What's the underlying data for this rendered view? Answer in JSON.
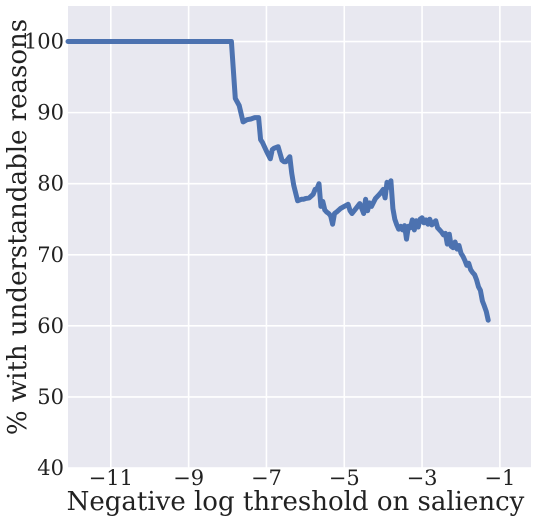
{
  "chart_data": {
    "type": "line",
    "title": "",
    "xlabel": "Negative log threshold on saliency",
    "ylabel": "% with understandable reasons",
    "xlim": [
      -12.1,
      -0.2
    ],
    "ylim": [
      40,
      105
    ],
    "xticks": [
      -11,
      -9,
      -7,
      -5,
      -3,
      -1
    ],
    "yticks": [
      40,
      50,
      60,
      70,
      80,
      90,
      100
    ],
    "xtick_labels": [
      "−11",
      "−9",
      "−7",
      "−5",
      "−3",
      "−1"
    ],
    "ytick_labels": [
      "40",
      "50",
      "60",
      "70",
      "80",
      "90",
      "100"
    ],
    "grid": true,
    "background_color": "#e8e8f0",
    "grid_color": "#ffffff",
    "line_color": "#4c72b0",
    "series": [
      {
        "x": [
          -12.1,
          -7.9,
          -7.8,
          -7.7,
          -7.6,
          -7.5,
          -7.4,
          -7.3,
          -7.2,
          -7.15,
          -7.1,
          -7.0,
          -6.9,
          -6.85,
          -6.8,
          -6.7,
          -6.6,
          -6.55,
          -6.5,
          -6.4,
          -6.35,
          -6.3,
          -6.2,
          -6.1,
          -6.05,
          -6.0,
          -5.9,
          -5.8,
          -5.75,
          -5.7,
          -5.65,
          -5.6,
          -5.55,
          -5.5,
          -5.45,
          -5.4,
          -5.35,
          -5.3,
          -5.25,
          -5.2,
          -5.1,
          -5.0,
          -4.9,
          -4.85,
          -4.8,
          -4.7,
          -4.6,
          -4.55,
          -4.5,
          -4.45,
          -4.4,
          -4.35,
          -4.3,
          -4.2,
          -4.1,
          -4.05,
          -4.0,
          -3.95,
          -3.9,
          -3.85,
          -3.8,
          -3.75,
          -3.7,
          -3.65,
          -3.6,
          -3.55,
          -3.5,
          -3.45,
          -3.4,
          -3.35,
          -3.3,
          -3.25,
          -3.2,
          -3.15,
          -3.1,
          -3.05,
          -3.0,
          -2.95,
          -2.9,
          -2.85,
          -2.8,
          -2.75,
          -2.7,
          -2.65,
          -2.6,
          -2.55,
          -2.5,
          -2.45,
          -2.4,
          -2.35,
          -2.3,
          -2.25,
          -2.2,
          -2.15,
          -2.1,
          -2.05,
          -2.0,
          -1.95,
          -1.9,
          -1.85,
          -1.8,
          -1.75,
          -1.7,
          -1.65,
          -1.6,
          -1.55,
          -1.5,
          -1.45,
          -1.4,
          -1.35,
          -1.3
        ],
        "y": [
          100,
          100,
          92,
          91,
          88.7,
          89,
          89.1,
          89.3,
          89.3,
          86.2,
          85.8,
          84.6,
          83.5,
          84.8,
          85.0,
          85.2,
          83.3,
          83.1,
          83.1,
          83.8,
          81.5,
          79.8,
          77.6,
          77.8,
          77.8,
          77.9,
          78.0,
          78.5,
          79.2,
          79.3,
          80.0,
          76.8,
          77.5,
          76.3,
          76.0,
          75.8,
          75.5,
          74.3,
          75.8,
          76.0,
          76.5,
          76.8,
          77.1,
          76.2,
          75.8,
          76.5,
          77.2,
          76.5,
          75.8,
          77.8,
          76.2,
          77.3,
          76.8,
          77.9,
          78.5,
          78.8,
          79.2,
          78.0,
          80.2,
          79.5,
          80.4,
          76.5,
          75.0,
          74.2,
          73.6,
          74.0,
          73.5,
          74.1,
          72.2,
          74.0,
          73.8,
          74.9,
          73.5,
          74.8,
          73.9,
          75.0,
          75.2,
          74.5,
          74.9,
          74.3,
          75.0,
          74.2,
          74.5,
          74.8,
          73.8,
          73.5,
          73.2,
          72.8,
          73.0,
          71.5,
          72.9,
          71.2,
          71.0,
          71.8,
          70.8,
          71.3,
          70.2,
          69.8,
          69.2,
          68.5,
          68.8,
          67.9,
          67.5,
          67.2,
          66.5,
          65.5,
          65.0,
          63.5,
          62.8,
          62.0,
          60.8
        ]
      }
    ]
  }
}
